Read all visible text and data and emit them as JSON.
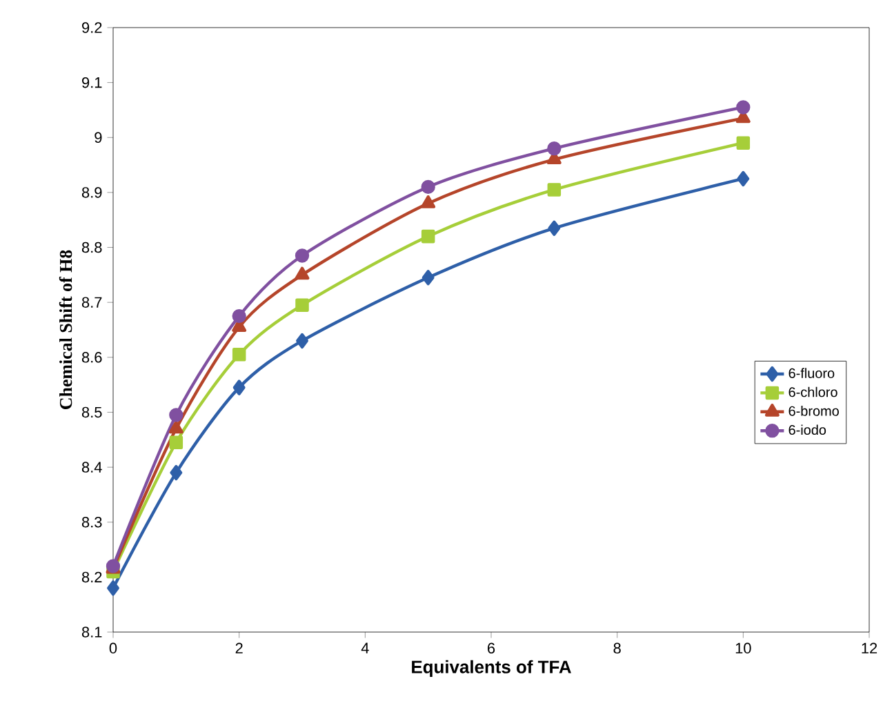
{
  "chart_data": {
    "type": "line",
    "xlabel": "Equivalents of TFA",
    "ylabel": "Chemical Shift of H8",
    "x": [
      0,
      1,
      2,
      3,
      5,
      7,
      10
    ],
    "series": [
      {
        "name": "6-fluoro",
        "color": "#2e5fa8",
        "marker": "diamond",
        "values": [
          8.18,
          8.39,
          8.545,
          8.63,
          8.745,
          8.835,
          8.925
        ]
      },
      {
        "name": "6-chloro",
        "color": "#a6ce39",
        "marker": "square",
        "values": [
          8.21,
          8.445,
          8.605,
          8.695,
          8.82,
          8.905,
          8.99
        ]
      },
      {
        "name": "6-bromo",
        "color": "#b5452a",
        "marker": "triangle",
        "values": [
          8.215,
          8.47,
          8.655,
          8.75,
          8.88,
          8.96,
          9.035
        ]
      },
      {
        "name": "6-iodo",
        "color": "#8050a0",
        "marker": "circle",
        "values": [
          8.22,
          8.495,
          8.675,
          8.785,
          8.91,
          8.98,
          9.055
        ]
      }
    ],
    "xlim": [
      0,
      12
    ],
    "xticks": [
      0,
      2,
      4,
      6,
      8,
      10,
      12
    ],
    "ylim": [
      8.1,
      9.2
    ],
    "yticks": [
      8.1,
      8.2,
      8.3,
      8.4,
      8.5,
      8.6,
      8.7,
      8.8,
      8.9,
      9,
      9.1,
      9.2
    ],
    "grid": false,
    "legend": "right",
    "line_style": "solid"
  }
}
